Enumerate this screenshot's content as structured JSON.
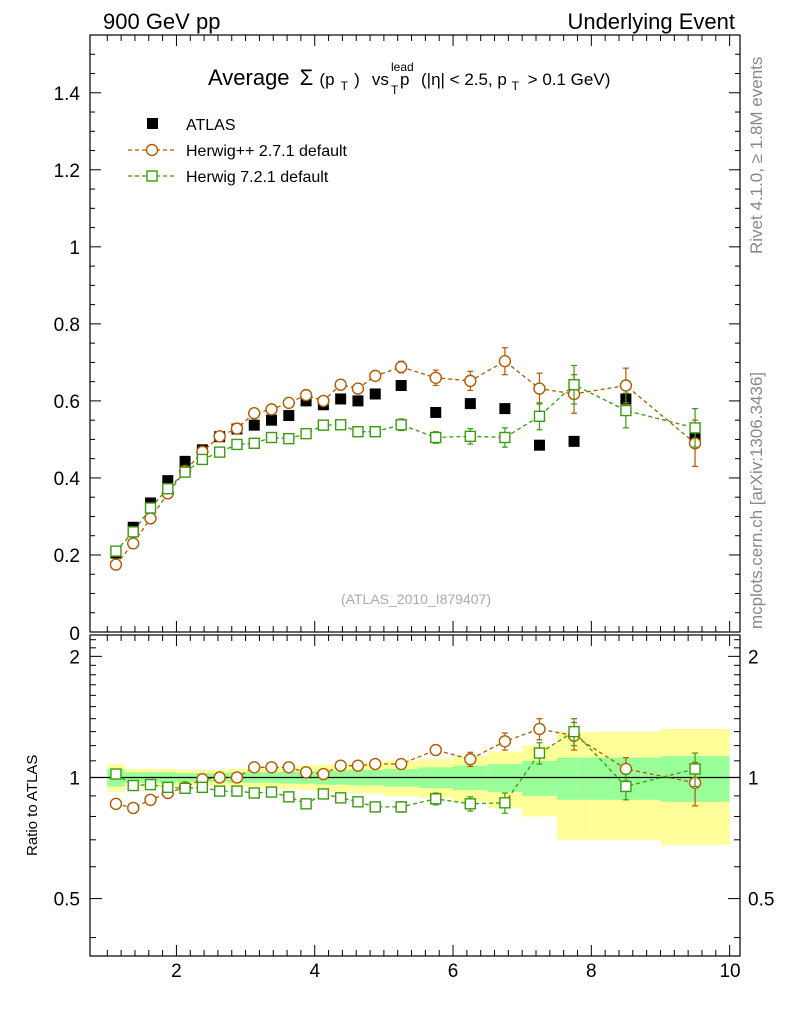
{
  "header": {
    "left_label": "900 GeV pp",
    "right_label": "Underlying Event"
  },
  "side_labels": {
    "rivet": "Rivet 4.1.0, ≥ 1.8M events",
    "mcplots": "mcplots.cern.ch [arXiv:1306.3436]"
  },
  "chart_data": [
    {
      "type": "scatter",
      "title": {
        "prefix": "Average",
        "sigma": "Σ",
        "pt_open": "(p",
        "pt_sub": "T",
        "pt_close": ")",
        "vs": "vs",
        "p": "p",
        "p_sup": "lead",
        "p_sub": "T",
        "cuts_a": "(|η| < 2.5, p",
        "cuts_sub": "T",
        "cuts_b": "> 0.1 GeV)"
      },
      "watermark": "(ATLAS_2010_I879407)",
      "xlim": [
        0.75,
        10.15
      ],
      "ylim": [
        0.0,
        1.55
      ],
      "y_ticks": [
        0.2,
        0.4,
        0.6,
        0.8,
        1.0,
        1.2,
        1.4
      ],
      "y_tick_labels": [
        "0.2",
        "0.4",
        "0.6",
        "0.8",
        "1",
        "1.2",
        "1.4"
      ],
      "y_zero_label": "0",
      "legend": [
        {
          "key": "atlas",
          "label": "ATLAS"
        },
        {
          "key": "herwigpp",
          "label": "Herwig++ 2.7.1 default"
        },
        {
          "key": "herwig7",
          "label": "Herwig 7.2.1 default"
        }
      ],
      "series": [
        {
          "key": "atlas",
          "name": "ATLAS",
          "color": "#000000",
          "marker": "filled-square",
          "x": [
            1.125,
            1.375,
            1.625,
            1.875,
            2.125,
            2.375,
            2.625,
            2.875,
            3.125,
            3.375,
            3.625,
            3.875,
            4.125,
            4.375,
            4.625,
            4.875,
            5.25,
            5.75,
            6.25,
            6.75,
            7.25,
            7.75,
            8.5,
            9.5
          ],
          "y": [
            0.205,
            0.272,
            0.335,
            0.393,
            0.443,
            0.473,
            0.507,
            0.527,
            0.537,
            0.55,
            0.562,
            0.6,
            0.59,
            0.605,
            0.6,
            0.618,
            0.64,
            0.57,
            0.593,
            0.58,
            0.485,
            0.495,
            0.605,
            0.505
          ]
        },
        {
          "key": "herwigpp",
          "name": "Herwig++ 2.7.1 default",
          "color": "#b05a00",
          "marker": "open-circle",
          "x": [
            1.125,
            1.375,
            1.625,
            1.875,
            2.125,
            2.375,
            2.625,
            2.875,
            3.125,
            3.375,
            3.625,
            3.875,
            4.125,
            4.375,
            4.625,
            4.875,
            5.25,
            5.75,
            6.25,
            6.75,
            7.25,
            7.75,
            8.5,
            9.5
          ],
          "y": [
            0.175,
            0.23,
            0.295,
            0.36,
            0.418,
            0.468,
            0.508,
            0.528,
            0.568,
            0.578,
            0.595,
            0.615,
            0.6,
            0.642,
            0.632,
            0.665,
            0.688,
            0.66,
            0.652,
            0.703,
            0.632,
            0.618,
            0.64,
            0.49
          ],
          "err": [
            0.005,
            0.005,
            0.005,
            0.005,
            0.005,
            0.005,
            0.005,
            0.005,
            0.005,
            0.005,
            0.008,
            0.008,
            0.008,
            0.008,
            0.01,
            0.012,
            0.015,
            0.02,
            0.025,
            0.035,
            0.04,
            0.05,
            0.045,
            0.06
          ]
        },
        {
          "key": "herwig7",
          "name": "Herwig 7.2.1 default",
          "color": "#3a9a10",
          "marker": "open-square",
          "x": [
            1.125,
            1.375,
            1.625,
            1.875,
            2.125,
            2.375,
            2.625,
            2.875,
            3.125,
            3.375,
            3.625,
            3.875,
            4.125,
            4.375,
            4.625,
            4.875,
            5.25,
            5.75,
            6.25,
            6.75,
            7.25,
            7.75,
            8.5,
            9.5
          ],
          "y": [
            0.21,
            0.26,
            0.322,
            0.372,
            0.415,
            0.448,
            0.467,
            0.487,
            0.49,
            0.505,
            0.502,
            0.515,
            0.537,
            0.538,
            0.52,
            0.52,
            0.538,
            0.505,
            0.508,
            0.505,
            0.56,
            0.642,
            0.575,
            0.53
          ],
          "err": [
            0.005,
            0.005,
            0.005,
            0.005,
            0.005,
            0.005,
            0.005,
            0.005,
            0.005,
            0.005,
            0.008,
            0.008,
            0.008,
            0.008,
            0.01,
            0.012,
            0.015,
            0.015,
            0.02,
            0.025,
            0.035,
            0.05,
            0.045,
            0.05
          ]
        }
      ]
    },
    {
      "type": "scatter",
      "ylabel": "Ratio to ATLAS",
      "xlim": [
        0.75,
        10.15
      ],
      "ylim": [
        0.36,
        2.26
      ],
      "y_log": true,
      "y_ticks": [
        0.5,
        1.0,
        2.0
      ],
      "y_tick_labels": [
        "0.5",
        "1",
        "2"
      ],
      "x_ticks": [
        2,
        4,
        6,
        8,
        10
      ],
      "x_tick_labels": [
        "2",
        "4",
        "6",
        "8",
        "10"
      ],
      "reference_line": 1.0,
      "bin_edges": [
        1.0,
        1.25,
        1.5,
        1.75,
        2.0,
        2.25,
        2.5,
        2.75,
        3.0,
        3.25,
        3.5,
        3.75,
        4.0,
        4.25,
        4.5,
        4.75,
        5.0,
        5.5,
        6.0,
        6.5,
        7.0,
        7.5,
        8.0,
        9.0,
        10.0
      ],
      "band_inner": [
        0.05,
        0.03,
        0.03,
        0.03,
        0.025,
        0.025,
        0.025,
        0.03,
        0.03,
        0.03,
        0.035,
        0.035,
        0.04,
        0.04,
        0.045,
        0.045,
        0.05,
        0.06,
        0.07,
        0.08,
        0.1,
        0.12,
        0.12,
        0.13
      ],
      "band_outer": [
        0.08,
        0.05,
        0.05,
        0.05,
        0.045,
        0.045,
        0.045,
        0.05,
        0.055,
        0.06,
        0.065,
        0.07,
        0.075,
        0.08,
        0.085,
        0.09,
        0.1,
        0.11,
        0.13,
        0.16,
        0.2,
        0.3,
        0.3,
        0.32
      ],
      "band_colors": {
        "inner": "#99ff99",
        "outer": "#ffff99"
      },
      "series": [
        {
          "key": "herwigpp",
          "name": "Herwig++ 2.7.1 default",
          "color": "#b05a00",
          "marker": "open-circle",
          "x": [
            1.125,
            1.375,
            1.625,
            1.875,
            2.125,
            2.375,
            2.625,
            2.875,
            3.125,
            3.375,
            3.625,
            3.875,
            4.125,
            4.375,
            4.625,
            4.875,
            5.25,
            5.75,
            6.25,
            6.75,
            7.25,
            7.75,
            8.5,
            9.5
          ],
          "y": [
            0.86,
            0.84,
            0.88,
            0.915,
            0.945,
            0.99,
            1.0,
            1.0,
            1.06,
            1.06,
            1.06,
            1.03,
            1.02,
            1.07,
            1.07,
            1.08,
            1.08,
            1.17,
            1.11,
            1.23,
            1.32,
            1.27,
            1.05,
            0.97
          ],
          "err": [
            0.01,
            0.01,
            0.01,
            0.01,
            0.01,
            0.01,
            0.01,
            0.01,
            0.01,
            0.01,
            0.015,
            0.015,
            0.015,
            0.015,
            0.02,
            0.02,
            0.025,
            0.035,
            0.045,
            0.06,
            0.08,
            0.1,
            0.07,
            0.12
          ]
        },
        {
          "key": "herwig7",
          "name": "Herwig 7.2.1 default",
          "color": "#3a9a10",
          "marker": "open-square",
          "x": [
            1.125,
            1.375,
            1.625,
            1.875,
            2.125,
            2.375,
            2.625,
            2.875,
            3.125,
            3.375,
            3.625,
            3.875,
            4.125,
            4.375,
            4.625,
            4.875,
            5.25,
            5.75,
            6.25,
            6.75,
            7.25,
            7.75,
            8.5,
            9.5
          ],
          "y": [
            1.02,
            0.955,
            0.96,
            0.945,
            0.94,
            0.945,
            0.925,
            0.925,
            0.915,
            0.92,
            0.895,
            0.86,
            0.91,
            0.89,
            0.87,
            0.845,
            0.845,
            0.885,
            0.86,
            0.865,
            1.15,
            1.3,
            0.95,
            1.05
          ],
          "err": [
            0.01,
            0.01,
            0.01,
            0.01,
            0.01,
            0.01,
            0.01,
            0.01,
            0.01,
            0.01,
            0.015,
            0.015,
            0.015,
            0.015,
            0.02,
            0.02,
            0.025,
            0.03,
            0.035,
            0.05,
            0.07,
            0.1,
            0.07,
            0.1
          ]
        }
      ]
    }
  ]
}
